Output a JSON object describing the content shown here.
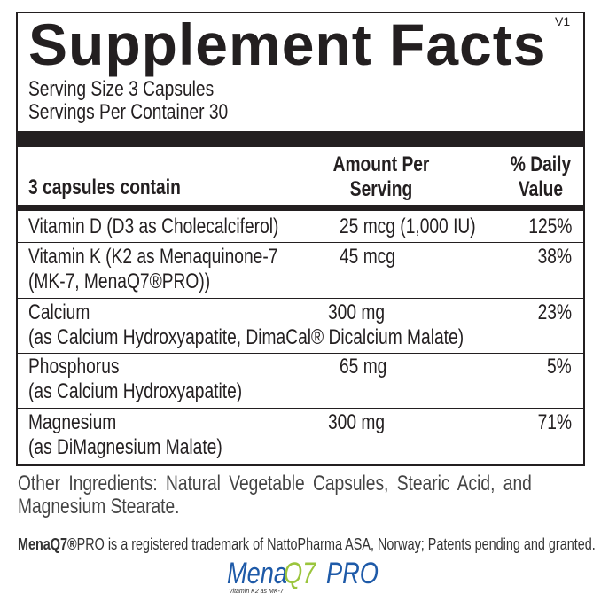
{
  "title": "Supplement Facts",
  "version": "V1",
  "serving_size": "Serving Size 3 Capsules",
  "servings_per_container": "Servings Per Container 30",
  "header": {
    "col1": "3 capsules contain",
    "col2_line1": "Amount Per",
    "col2_line2": "Serving",
    "col3_line1": "% Daily",
    "col3_line2": "Value"
  },
  "rows": [
    {
      "name": "Vitamin D (D3 as Cholecalciferol)",
      "amount": "25 mcg (1,000 IU)",
      "dv": "125%"
    },
    {
      "name": "Vitamin K (K2 as Menaquinone-7",
      "name2": "(MK-7, MenaQ7®PRO))",
      "amount": "45 mcg",
      "dv": "38%"
    },
    {
      "name": "Calcium",
      "name2": "(as Calcium Hydroxyapatite, DimaCal® Dicalcium Malate)",
      "amount": "300 mg",
      "dv": "23%"
    },
    {
      "name": "Phosphorus",
      "name2": "(as Calcium Hydroxyapatite)",
      "amount": "65 mg",
      "dv": "5%"
    },
    {
      "name": "Magnesium",
      "name2": "(as DiMagnesium Malate)",
      "amount": "300 mg",
      "dv": "71%"
    }
  ],
  "other_ingredients_line1": "Other Ingredients: Natural Vegetable Capsules, Stearic Acid, and",
  "other_ingredients_line2": "Magnesium Stearate.",
  "trademark_brand": "MenaQ7®",
  "trademark_text": "PRO is a registered trademark of NattoPharma ASA, Norway; Patents pending and granted.",
  "logo": {
    "text_mena": "Mena",
    "text_q7": "Q7",
    "text_pro": "PRO",
    "tagline": "Vitamin K2 as MK-7",
    "blue": "#1e5aa8",
    "green": "#9bc53d"
  }
}
